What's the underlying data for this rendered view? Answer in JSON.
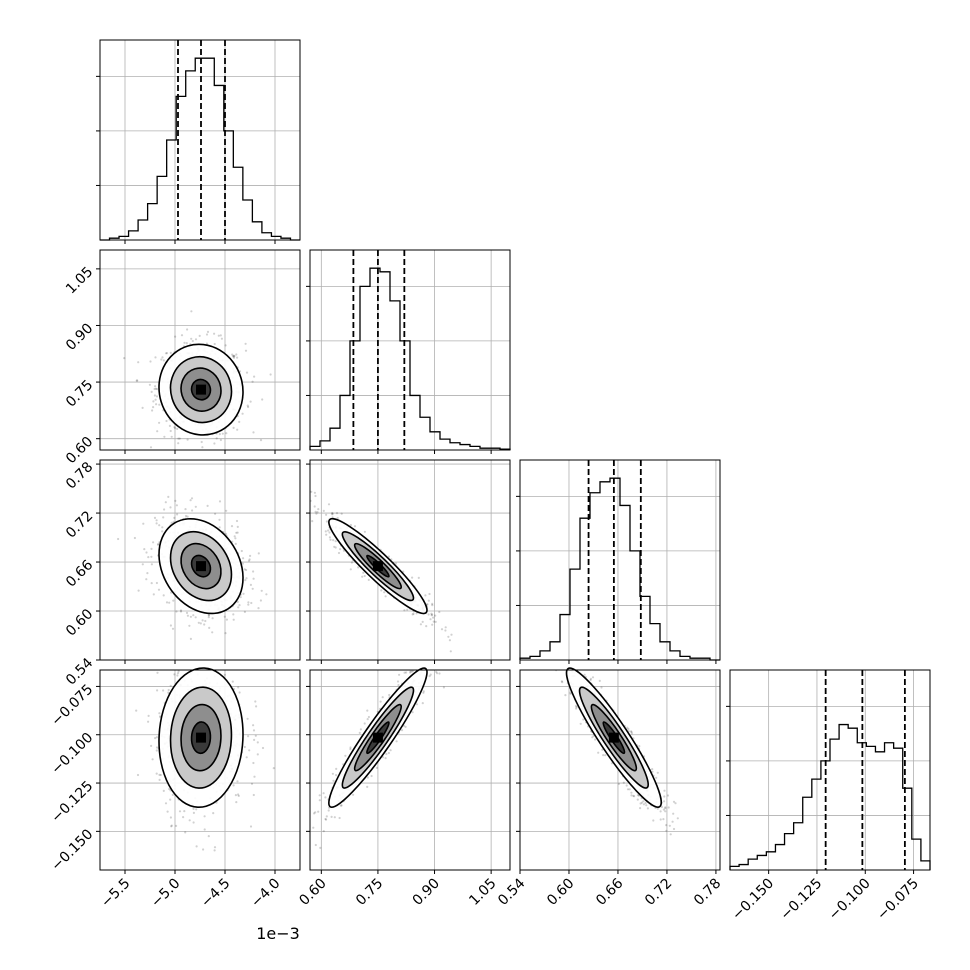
{
  "chart_data": {
    "type": "corner",
    "title": "",
    "offset_label": "1e−3",
    "parameters": [
      {
        "range": [
          -5.75,
          -3.75
        ],
        "ticks": [
          -5.5,
          -5.0,
          -4.5,
          -4.0
        ],
        "tick_labels": [
          "−5.5",
          "−5.0",
          "−4.5",
          "−4.0"
        ],
        "median": -4.74,
        "q16": -4.97,
        "q84": -4.5,
        "hist": [
          0,
          0.01,
          0.02,
          0.05,
          0.11,
          0.2,
          0.35,
          0.55,
          0.79,
          0.93,
          1.0,
          1.0,
          0.85,
          0.6,
          0.4,
          0.22,
          0.1,
          0.04,
          0.02,
          0.01,
          0
        ]
      },
      {
        "range": [
          0.57,
          1.1
        ],
        "ticks": [
          0.6,
          0.75,
          0.9,
          1.05
        ],
        "tick_labels": [
          "0.60",
          "0.75",
          "0.90",
          "1.05"
        ],
        "median": 0.75,
        "q16": 0.685,
        "q84": 0.82,
        "hist": [
          0.02,
          0.05,
          0.12,
          0.3,
          0.6,
          0.9,
          1.0,
          0.98,
          0.82,
          0.6,
          0.3,
          0.18,
          0.1,
          0.06,
          0.04,
          0.03,
          0.02,
          0.01,
          0.01,
          0.005
        ]
      },
      {
        "range": [
          0.54,
          0.785
        ],
        "ticks": [
          0.54,
          0.6,
          0.66,
          0.72,
          0.78
        ],
        "tick_labels": [
          "0.54",
          "0.60",
          "0.66",
          "0.72",
          "0.78"
        ],
        "median": 0.655,
        "q16": 0.624,
        "q84": 0.688,
        "hist": [
          0.01,
          0.02,
          0.05,
          0.1,
          0.25,
          0.5,
          0.78,
          0.92,
          0.98,
          1.0,
          0.85,
          0.6,
          0.35,
          0.2,
          0.1,
          0.05,
          0.02,
          0.01,
          0.01,
          0
        ]
      },
      {
        "range": [
          -0.17,
          -0.0665
        ],
        "ticks": [
          -0.15,
          -0.125,
          -0.1,
          -0.075
        ],
        "tick_labels": [
          "−0.150",
          "−0.125",
          "−0.100",
          "−0.075"
        ],
        "median": -0.1015,
        "q16": -0.1205,
        "q84": -0.0795,
        "hist": [
          0.02,
          0.03,
          0.06,
          0.08,
          0.1,
          0.14,
          0.2,
          0.26,
          0.4,
          0.5,
          0.6,
          0.72,
          0.8,
          0.78,
          0.7,
          0.68,
          0.65,
          0.7,
          0.67,
          0.45,
          0.17,
          0.05
        ]
      }
    ],
    "pairs": [
      {
        "row": 1,
        "col": 0,
        "center": [
          -4.74,
          0.73
        ],
        "sd": [
          0.21,
          0.06
        ],
        "rho": -0.05
      },
      {
        "row": 2,
        "col": 0,
        "center": [
          -4.74,
          0.655
        ],
        "sd": [
          0.21,
          0.029
        ],
        "rho": -0.25
      },
      {
        "row": 2,
        "col": 1,
        "center": [
          0.75,
          0.655
        ],
        "sd": [
          0.065,
          0.029
        ],
        "rho": -0.93
      },
      {
        "row": 3,
        "col": 0,
        "center": [
          -4.74,
          -0.1015
        ],
        "sd": [
          0.21,
          0.018
        ],
        "rho": 0.05
      },
      {
        "row": 3,
        "col": 1,
        "center": [
          0.75,
          -0.1015
        ],
        "sd": [
          0.065,
          0.018
        ],
        "rho": 0.94
      },
      {
        "row": 3,
        "col": 2,
        "center": [
          0.655,
          -0.1015
        ],
        "sd": [
          0.029,
          0.018
        ],
        "rho": -0.93
      }
    ],
    "grid": true
  }
}
